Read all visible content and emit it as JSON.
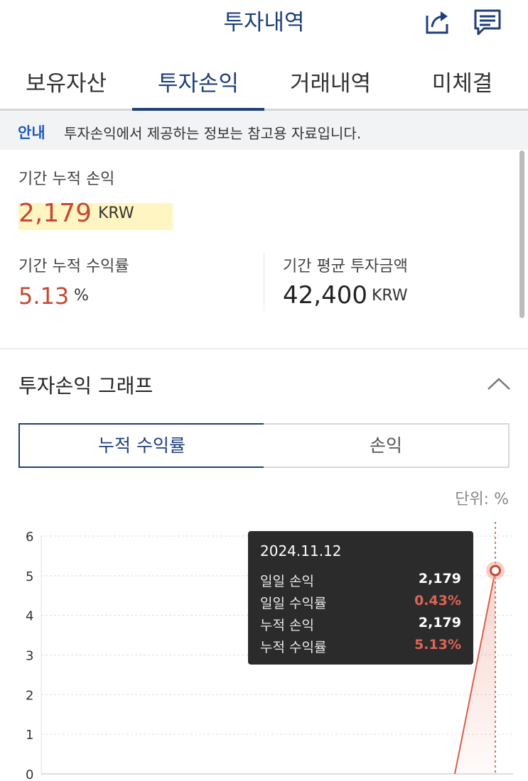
{
  "header": {
    "title": "투자내역"
  },
  "tabs": [
    {
      "label": "보유자산"
    },
    {
      "label": "투자손익"
    },
    {
      "label": "거래내역"
    },
    {
      "label": "미체결"
    }
  ],
  "notice": {
    "tag": "안내",
    "text": "투자손익에서 제공하는 정보는 참고용 자료입니다."
  },
  "summary": {
    "cum_pnl_label": "기간 누적 손익",
    "cum_pnl_value": "2,179",
    "cum_pnl_unit": "KRW",
    "cum_rate_label": "기간 누적 수익률",
    "cum_rate_value": "5.13",
    "cum_rate_unit": "%",
    "avg_invest_label": "기간 평균 투자금액",
    "avg_invest_value": "42,400",
    "avg_invest_unit": "KRW"
  },
  "graph": {
    "title": "투자손익 그래프",
    "segments": [
      {
        "label": "누적 수익률"
      },
      {
        "label": "손익"
      }
    ],
    "unit_text": "단위: %",
    "tooltip": {
      "date": "2024.11.12",
      "rows": [
        {
          "key": "일일 손익",
          "value": "2,179"
        },
        {
          "key": "일일 수익률",
          "value": "0.43%"
        },
        {
          "key": "누적 손익",
          "value": "2,179"
        },
        {
          "key": "누적 수익률",
          "value": "5.13%"
        }
      ]
    }
  },
  "colors": {
    "brand": "#1f3f7a",
    "profit": "#c44a34",
    "line": "#d9604a",
    "highlight": "#fff5c2"
  },
  "chart_data": {
    "type": "area",
    "y_ticks": [
      "6",
      "5",
      "4",
      "3",
      "2",
      "1",
      "0"
    ],
    "ylim": [
      0,
      6
    ],
    "x": [
      "",
      "2024.11.12"
    ],
    "values": [
      0,
      5.13
    ],
    "grid": true
  }
}
